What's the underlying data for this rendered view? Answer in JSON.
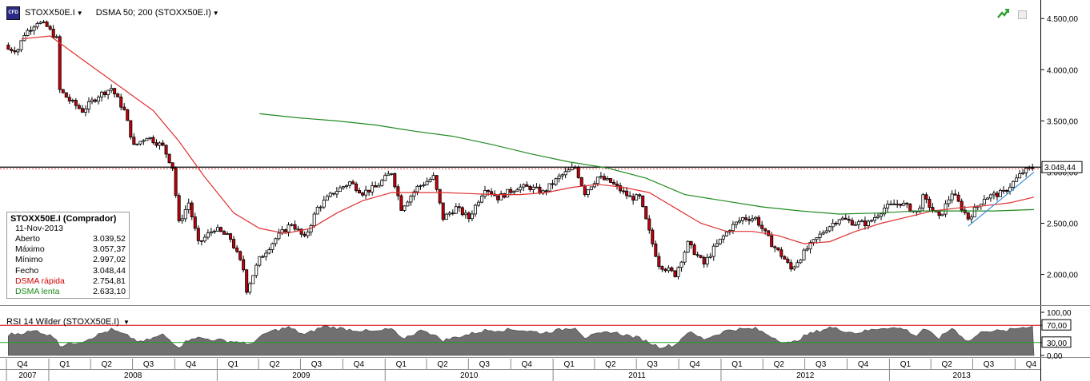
{
  "toolbar": {
    "symbol": "STOXX50E.I",
    "indicator": "DSMA 50; 200 (STOXX50E.I)",
    "logo_text": "CFD"
  },
  "icons": {
    "logo": "cfd-logo-icon",
    "trend": "trend-arrow-icon",
    "window": "minimize-window-icon",
    "dropdown": "chevron-down-icon"
  },
  "colors": {
    "candle_up": "#ffffff",
    "candle_down": "#c8000a",
    "fast_ma": "#e03030",
    "slow_ma": "#208a20",
    "trend_line": "#3a8fd8",
    "resistance": "#000000",
    "rsi_fill": "#707070",
    "rsi_70_line": "#d00000",
    "rsi_30_line": "#20a020"
  },
  "info": {
    "title": "STOXX50E.I (Comprador)",
    "date": "11-Nov-2013",
    "rows": [
      {
        "label": "Aberto",
        "value": "3.039,52"
      },
      {
        "label": "Máximo",
        "value": "3.057,37"
      },
      {
        "label": "Mínimo",
        "value": "2.997,02"
      },
      {
        "label": "Fecho",
        "value": "3.048,44"
      },
      {
        "label": "DSMA rápida",
        "value": "2.754,81"
      },
      {
        "label": "DSMA lenta",
        "value": "2.633,10"
      }
    ]
  },
  "rsi_panel": {
    "label": "RSI 14 Wilder (STOXX50E.I)"
  },
  "chart_data": [
    {
      "type": "candlestick",
      "period": "weekly",
      "ylim": [
        1700,
        4650
      ],
      "y_ticks": [
        {
          "v": 4500,
          "label": "4.500,00"
        },
        {
          "v": 4000,
          "label": "4.000,00"
        },
        {
          "v": 3500,
          "label": "3.500,00"
        },
        {
          "v": 3000,
          "label": "3.000,00"
        },
        {
          "v": 2500,
          "label": "2.500,00"
        },
        {
          "v": 2000,
          "label": "2.000,00"
        }
      ],
      "last_price": {
        "value": 3048.44,
        "label": "3.048,44"
      },
      "resistance_level": 3048.44,
      "close_path": [
        [
          "2007-10-26",
          4200
        ],
        [
          "2007-11-09",
          4350
        ],
        [
          "2007-12-07",
          4470
        ],
        [
          "2007-12-28",
          4420
        ],
        [
          "2008-01-18",
          4300
        ],
        [
          "2008-01-25",
          3800
        ],
        [
          "2008-02-15",
          3700
        ],
        [
          "2008-03-14",
          3600
        ],
        [
          "2008-04-18",
          3750
        ],
        [
          "2008-05-16",
          3820
        ],
        [
          "2008-06-13",
          3600
        ],
        [
          "2008-07-04",
          3250
        ],
        [
          "2008-08-01",
          3350
        ],
        [
          "2008-09-05",
          3250
        ],
        [
          "2008-09-26",
          3050
        ],
        [
          "2008-10-10",
          2500
        ],
        [
          "2008-10-31",
          2700
        ],
        [
          "2008-11-21",
          2300
        ],
        [
          "2008-12-26",
          2450
        ],
        [
          "2009-01-30",
          2350
        ],
        [
          "2009-02-27",
          2050
        ],
        [
          "2009-03-06",
          1850
        ],
        [
          "2009-04-03",
          2150
        ],
        [
          "2009-05-08",
          2350
        ],
        [
          "2009-06-12",
          2500
        ],
        [
          "2009-07-10",
          2350
        ],
        [
          "2009-08-07",
          2650
        ],
        [
          "2009-09-11",
          2800
        ],
        [
          "2009-10-16",
          2900
        ],
        [
          "2009-11-13",
          2800
        ],
        [
          "2009-12-11",
          2850
        ],
        [
          "2010-01-15",
          3000
        ],
        [
          "2010-02-05",
          2650
        ],
        [
          "2010-03-12",
          2850
        ],
        [
          "2010-04-16",
          2950
        ],
        [
          "2010-05-07",
          2550
        ],
        [
          "2010-06-04",
          2650
        ],
        [
          "2010-07-02",
          2550
        ],
        [
          "2010-08-06",
          2850
        ],
        [
          "2010-09-03",
          2750
        ],
        [
          "2010-10-15",
          2850
        ],
        [
          "2010-11-12",
          2850
        ],
        [
          "2010-12-10",
          2800
        ],
        [
          "2011-01-14",
          2950
        ],
        [
          "2011-02-18",
          3050
        ],
        [
          "2011-03-11",
          2800
        ],
        [
          "2011-04-08",
          2950
        ],
        [
          "2011-05-06",
          2900
        ],
        [
          "2011-06-17",
          2750
        ],
        [
          "2011-07-08",
          2750
        ],
        [
          "2011-08-05",
          2300
        ],
        [
          "2011-08-19",
          2100
        ],
        [
          "2011-09-23",
          2000
        ],
        [
          "2011-10-21",
          2300
        ],
        [
          "2011-11-25",
          2100
        ],
        [
          "2011-12-16",
          2250
        ],
        [
          "2012-01-20",
          2450
        ],
        [
          "2012-02-17",
          2550
        ],
        [
          "2012-03-16",
          2550
        ],
        [
          "2012-04-20",
          2300
        ],
        [
          "2012-05-18",
          2150
        ],
        [
          "2012-06-01",
          2050
        ],
        [
          "2012-07-06",
          2250
        ],
        [
          "2012-08-17",
          2450
        ],
        [
          "2012-09-14",
          2550
        ],
        [
          "2012-10-19",
          2500
        ],
        [
          "2012-11-16",
          2500
        ],
        [
          "2012-12-21",
          2650
        ],
        [
          "2013-01-25",
          2700
        ],
        [
          "2013-03-01",
          2600
        ],
        [
          "2013-03-15",
          2750
        ],
        [
          "2013-04-19",
          2550
        ],
        [
          "2013-05-17",
          2800
        ],
        [
          "2013-06-21",
          2550
        ],
        [
          "2013-07-26",
          2750
        ],
        [
          "2013-09-06",
          2800
        ],
        [
          "2013-10-18",
          3000
        ],
        [
          "2013-11-11",
          3048.44
        ]
      ],
      "series": [
        {
          "name": "DSMA rápida",
          "points": [
            [
              "2007-11-02",
              4300
            ],
            [
              "2008-01-04",
              4330
            ],
            [
              "2008-03-14",
              4100
            ],
            [
              "2008-05-30",
              3850
            ],
            [
              "2008-08-15",
              3600
            ],
            [
              "2008-10-10",
              3300
            ],
            [
              "2008-12-05",
              2950
            ],
            [
              "2009-02-06",
              2600
            ],
            [
              "2009-04-03",
              2450
            ],
            [
              "2009-05-29",
              2400
            ],
            [
              "2009-07-24",
              2450
            ],
            [
              "2009-09-18",
              2600
            ],
            [
              "2009-11-13",
              2720
            ],
            [
              "2010-01-15",
              2800
            ],
            [
              "2010-03-12",
              2800
            ],
            [
              "2010-05-07",
              2800
            ],
            [
              "2010-07-02",
              2790
            ],
            [
              "2010-08-27",
              2780
            ],
            [
              "2010-10-22",
              2780
            ],
            [
              "2010-12-17",
              2800
            ],
            [
              "2011-02-11",
              2850
            ],
            [
              "2011-04-08",
              2880
            ],
            [
              "2011-06-03",
              2850
            ],
            [
              "2011-07-29",
              2800
            ],
            [
              "2011-09-23",
              2650
            ],
            [
              "2011-11-18",
              2500
            ],
            [
              "2012-01-13",
              2420
            ],
            [
              "2012-03-09",
              2420
            ],
            [
              "2012-05-04",
              2380
            ],
            [
              "2012-06-29",
              2300
            ],
            [
              "2012-08-24",
              2320
            ],
            [
              "2012-10-19",
              2420
            ],
            [
              "2012-12-14",
              2500
            ],
            [
              "2013-02-08",
              2560
            ],
            [
              "2013-04-05",
              2620
            ],
            [
              "2013-05-31",
              2650
            ],
            [
              "2013-07-26",
              2670
            ],
            [
              "2013-09-20",
              2700
            ],
            [
              "2013-11-11",
              2754.81
            ]
          ]
        },
        {
          "name": "DSMA lenta",
          "points": [
            [
              "2009-04-03",
              3570
            ],
            [
              "2009-06-26",
              3530
            ],
            [
              "2009-09-18",
              3500
            ],
            [
              "2009-12-11",
              3460
            ],
            [
              "2010-03-05",
              3400
            ],
            [
              "2010-05-28",
              3350
            ],
            [
              "2010-08-20",
              3270
            ],
            [
              "2010-11-12",
              3180
            ],
            [
              "2011-02-04",
              3100
            ],
            [
              "2011-04-29",
              3040
            ],
            [
              "2011-07-22",
              2940
            ],
            [
              "2011-10-14",
              2780
            ],
            [
              "2012-01-06",
              2720
            ],
            [
              "2012-03-30",
              2660
            ],
            [
              "2012-06-22",
              2620
            ],
            [
              "2012-09-14",
              2590
            ],
            [
              "2012-12-07",
              2600
            ],
            [
              "2013-03-01",
              2620
            ],
            [
              "2013-05-24",
              2620
            ],
            [
              "2013-08-16",
              2620
            ],
            [
              "2013-11-11",
              2633.1
            ]
          ]
        }
      ],
      "trend_line": [
        [
          "2013-06-21",
          2470
        ],
        [
          "2013-11-11",
          3000
        ]
      ]
    },
    {
      "type": "area",
      "name": "RSI 14 Wilder",
      "ylim": [
        0,
        100
      ],
      "y_ticks": [
        {
          "v": 100,
          "label": "100,00"
        },
        {
          "v": 70,
          "label": "70,00"
        },
        {
          "v": 30,
          "label": "30,00"
        },
        {
          "v": 0,
          "label": "0,00"
        }
      ],
      "levels": [
        70,
        30
      ],
      "points": [
        [
          "2007-10-05",
          48
        ],
        [
          "2007-12-07",
          57
        ],
        [
          "2008-01-18",
          40
        ],
        [
          "2008-01-25",
          22
        ],
        [
          "2008-03-14",
          33
        ],
        [
          "2008-05-16",
          60
        ],
        [
          "2008-06-27",
          42
        ],
        [
          "2008-07-18",
          30
        ],
        [
          "2008-09-05",
          48
        ],
        [
          "2008-10-10",
          20
        ],
        [
          "2008-11-07",
          42
        ],
        [
          "2008-12-12",
          38
        ],
        [
          "2009-02-27",
          30
        ],
        [
          "2009-03-06",
          22
        ],
        [
          "2009-04-24",
          55
        ],
        [
          "2009-06-05",
          65
        ],
        [
          "2009-07-10",
          48
        ],
        [
          "2009-08-21",
          68
        ],
        [
          "2009-10-16",
          60
        ],
        [
          "2009-12-11",
          55
        ],
        [
          "2010-01-15",
          62
        ],
        [
          "2010-02-05",
          38
        ],
        [
          "2010-03-26",
          60
        ],
        [
          "2010-05-07",
          35
        ],
        [
          "2010-06-04",
          42
        ],
        [
          "2010-08-06",
          58
        ],
        [
          "2010-10-15",
          60
        ],
        [
          "2010-12-10",
          52
        ],
        [
          "2011-02-18",
          66
        ],
        [
          "2011-03-11",
          42
        ],
        [
          "2011-05-06",
          55
        ],
        [
          "2011-07-08",
          40
        ],
        [
          "2011-08-19",
          20
        ],
        [
          "2011-09-23",
          24
        ],
        [
          "2011-10-21",
          55
        ],
        [
          "2011-11-25",
          38
        ],
        [
          "2012-01-20",
          60
        ],
        [
          "2012-03-16",
          62
        ],
        [
          "2012-05-18",
          30
        ],
        [
          "2012-06-01",
          28
        ],
        [
          "2012-07-06",
          48
        ],
        [
          "2012-08-24",
          65
        ],
        [
          "2012-10-19",
          52
        ],
        [
          "2012-12-21",
          65
        ],
        [
          "2013-02-01",
          62
        ],
        [
          "2013-03-01",
          45
        ],
        [
          "2013-03-15",
          62
        ],
        [
          "2013-04-19",
          40
        ],
        [
          "2013-05-17",
          64
        ],
        [
          "2013-06-21",
          32
        ],
        [
          "2013-07-26",
          58
        ],
        [
          "2013-09-06",
          56
        ],
        [
          "2013-10-18",
          66
        ],
        [
          "2013-11-11",
          68
        ]
      ]
    }
  ],
  "time_axis": {
    "quarters": [
      {
        "label": "Q4",
        "start": "2007-10-01"
      },
      {
        "label": "Q1",
        "start": "2008-01-01"
      },
      {
        "label": "Q2",
        "start": "2008-04-01"
      },
      {
        "label": "Q3",
        "start": "2008-07-01"
      },
      {
        "label": "Q4",
        "start": "2008-10-01"
      },
      {
        "label": "Q1",
        "start": "2009-01-01"
      },
      {
        "label": "Q2",
        "start": "2009-04-01"
      },
      {
        "label": "Q3",
        "start": "2009-07-01"
      },
      {
        "label": "Q4",
        "start": "2009-10-01"
      },
      {
        "label": "Q1",
        "start": "2010-01-01"
      },
      {
        "label": "Q2",
        "start": "2010-04-01"
      },
      {
        "label": "Q3",
        "start": "2010-07-01"
      },
      {
        "label": "Q4",
        "start": "2010-10-01"
      },
      {
        "label": "Q1",
        "start": "2011-01-01"
      },
      {
        "label": "Q2",
        "start": "2011-04-01"
      },
      {
        "label": "Q3",
        "start": "2011-07-01"
      },
      {
        "label": "Q4",
        "start": "2011-10-01"
      },
      {
        "label": "Q1",
        "start": "2012-01-01"
      },
      {
        "label": "Q2",
        "start": "2012-04-01"
      },
      {
        "label": "Q3",
        "start": "2012-07-01"
      },
      {
        "label": "Q4",
        "start": "2012-10-01"
      },
      {
        "label": "Q1",
        "start": "2013-01-01"
      },
      {
        "label": "Q2",
        "start": "2013-04-01"
      },
      {
        "label": "Q3",
        "start": "2013-07-01"
      },
      {
        "label": "Q4",
        "start": "2013-10-01"
      }
    ],
    "years": [
      {
        "label": "2007",
        "start": "2007-10-01",
        "end": "2008-01-01"
      },
      {
        "label": "2008",
        "start": "2008-01-01",
        "end": "2009-01-01"
      },
      {
        "label": "2009",
        "start": "2009-01-01",
        "end": "2010-01-01"
      },
      {
        "label": "2010",
        "start": "2010-01-01",
        "end": "2011-01-01"
      },
      {
        "label": "2011",
        "start": "2011-01-01",
        "end": "2012-01-01"
      },
      {
        "label": "2012",
        "start": "2012-01-01",
        "end": "2013-01-01"
      },
      {
        "label": "2013",
        "start": "2013-01-01",
        "end": "2013-11-11"
      }
    ]
  }
}
